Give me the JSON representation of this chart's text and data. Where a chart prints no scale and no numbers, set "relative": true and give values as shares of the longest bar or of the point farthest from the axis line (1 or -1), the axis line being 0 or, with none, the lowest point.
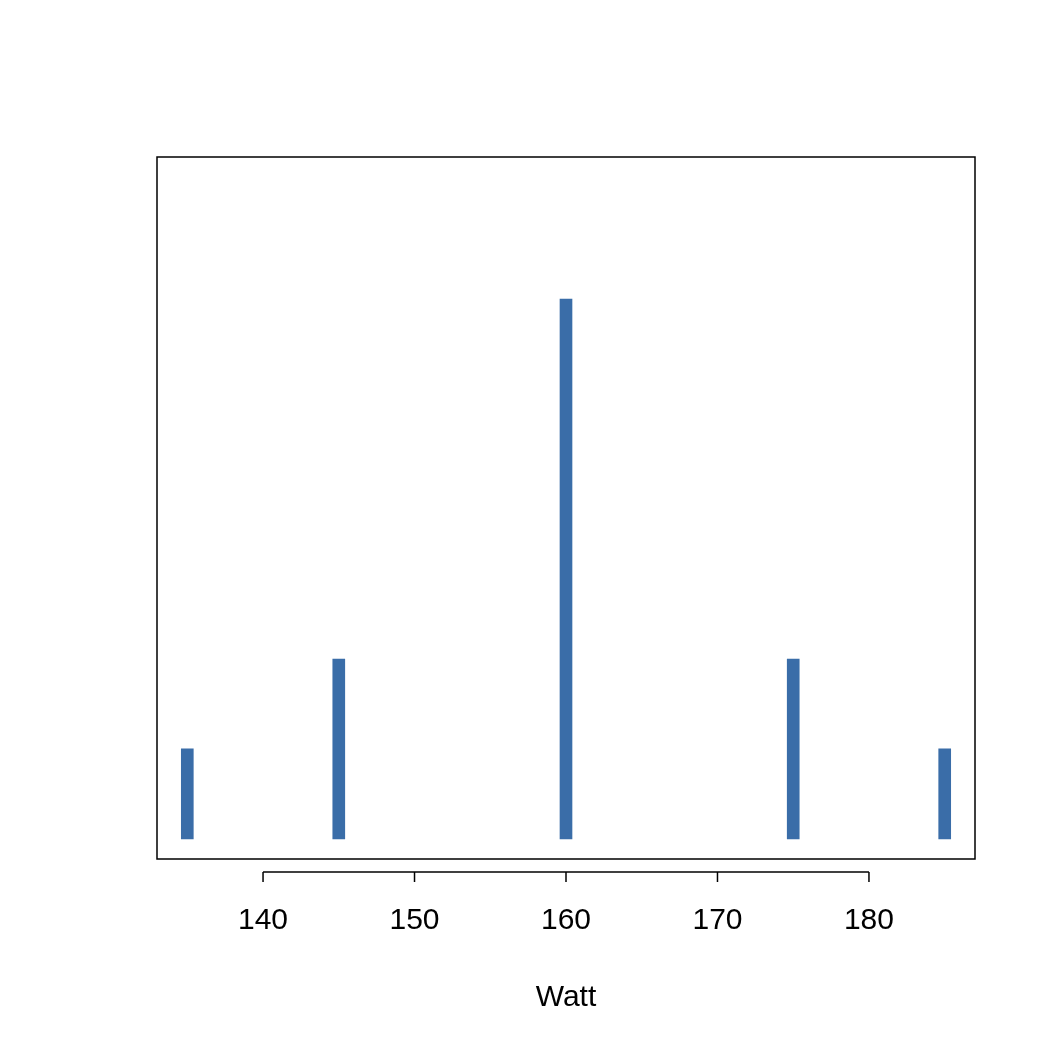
{
  "chart_data": {
    "type": "bar",
    "xlabel": "Watt",
    "relative": true,
    "x": [
      135,
      145,
      160,
      175,
      185
    ],
    "values": [
      0.167,
      0.333,
      1,
      0.333,
      0.167
    ],
    "color": "#3a6da8",
    "xlim": [
      133,
      187
    ],
    "xticks": [
      140,
      150,
      160,
      170,
      180
    ],
    "tick_labels": "x"
  }
}
